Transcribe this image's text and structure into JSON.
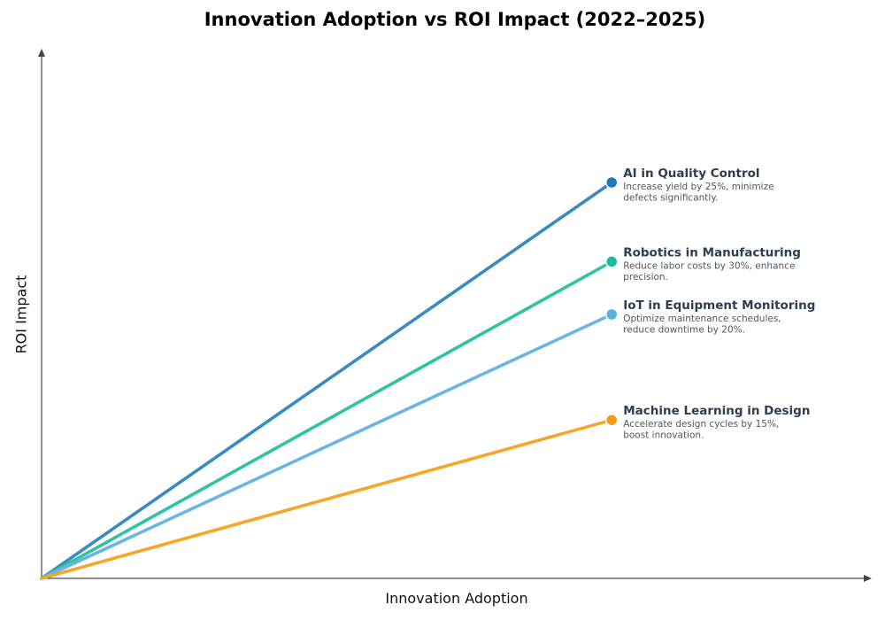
{
  "chart_data": {
    "type": "line",
    "title": "Innovation Adoption vs ROI Impact (2022–2025)",
    "xlabel": "Innovation Adoption",
    "ylabel": "ROI Impact",
    "xlim": [
      0,
      1.456
    ],
    "ylim": [
      0,
      1
    ],
    "grid": false,
    "series": [
      {
        "name": "AI in Quality Control",
        "description": "Increase yield by 25%, minimize defects significantly.",
        "desc_lines": [
          "Increase yield by 25%, minimize",
          "defects significantly."
        ],
        "x": [
          0,
          1
        ],
        "y": [
          0,
          0.75
        ],
        "color": "#3a8bc2",
        "marker_color": "#1f7ab8"
      },
      {
        "name": "Robotics in Manufacturing",
        "description": "Reduce labor costs by 30%, enhance precision.",
        "desc_lines": [
          "Reduce labor costs by 30%, enhance",
          "precision."
        ],
        "x": [
          0,
          1
        ],
        "y": [
          0,
          0.6
        ],
        "color": "#2ec4a0",
        "marker_color": "#1abc9c"
      },
      {
        "name": "IoT in Equipment Monitoring",
        "description": "Optimize maintenance schedules, reduce downtime by 20%.",
        "desc_lines": [
          "Optimize maintenance schedules,",
          "reduce downtime by 20%."
        ],
        "x": [
          0,
          1
        ],
        "y": [
          0,
          0.5
        ],
        "color": "#6bb5e4",
        "marker_color": "#5dade2"
      },
      {
        "name": "Machine Learning in Design",
        "description": "Accelerate design cycles by 15%, boost innovation.",
        "desc_lines": [
          "Accelerate design cycles by 15%,",
          "boost innovation."
        ],
        "x": [
          0,
          1
        ],
        "y": [
          0,
          0.3
        ],
        "color": "#f5a52a",
        "marker_color": "#f39c12"
      }
    ]
  }
}
